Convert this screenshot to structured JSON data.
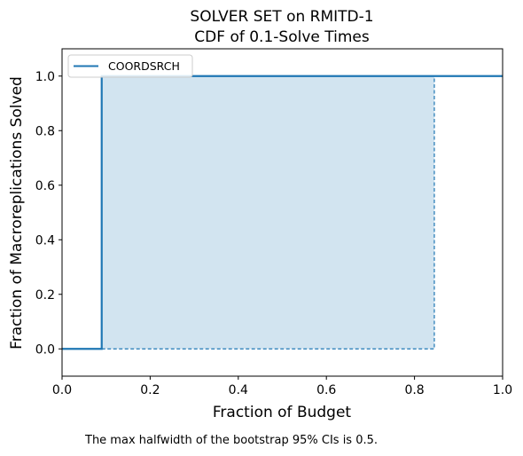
{
  "chart_data": {
    "type": "line",
    "title": "SOLVER SET on RMITD-1",
    "subtitle": "CDF of 0.1-Solve Times",
    "xlabel": "Fraction of Budget",
    "ylabel": "Fraction of Macroreplications Solved",
    "xlim": [
      0.0,
      1.0
    ],
    "ylim": [
      -0.1,
      1.1
    ],
    "xticks": [
      "0.0",
      "0.2",
      "0.4",
      "0.6",
      "0.8",
      "1.0"
    ],
    "yticks": [
      "0.0",
      "0.2",
      "0.4",
      "0.6",
      "0.8",
      "1.0"
    ],
    "grid": false,
    "legend_position": "top-left",
    "series": [
      {
        "name": "COORDSRCH",
        "color": "#1f77b4",
        "style": "step",
        "x": [
          0.0,
          0.09,
          0.09,
          1.0
        ],
        "y": [
          0.0,
          0.0,
          1.0,
          1.0
        ]
      }
    ],
    "confidence_band": {
      "color": "#1f77b4",
      "fill_opacity": 0.2,
      "x_start": 0.09,
      "x_end": 0.845,
      "lower": 0.0,
      "upper": 1.0
    }
  },
  "caption": "The max halfwidth of the bootstrap 95% CIs is 0.5."
}
